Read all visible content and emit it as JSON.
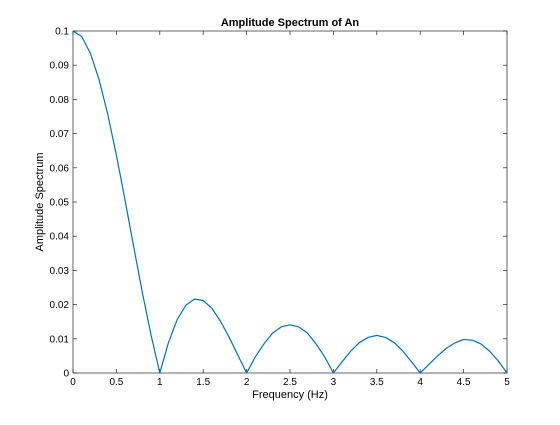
{
  "chart_data": {
    "type": "line",
    "title": "Amplitude Spectrum of An",
    "xlabel": "Frequency (Hz)",
    "ylabel": "Amplitude Spectrum",
    "xlim": [
      0,
      5
    ],
    "ylim": [
      0,
      0.1
    ],
    "xticks": [
      "0",
      "0.5",
      "1",
      "1.5",
      "2",
      "2.5",
      "3",
      "3.5",
      "4",
      "4.5",
      "5"
    ],
    "yticks": [
      "0",
      "0.01",
      "0.02",
      "0.03",
      "0.04",
      "0.05",
      "0.06",
      "0.07",
      "0.08",
      "0.09",
      "0.1"
    ],
    "grid": false,
    "series": [
      {
        "color": "#0072BD",
        "x": [
          0,
          0.1,
          0.2,
          0.3,
          0.4,
          0.5,
          0.6,
          0.7,
          0.8,
          0.9,
          1.0,
          1.1,
          1.2,
          1.3,
          1.4,
          1.5,
          1.6,
          1.7,
          1.8,
          1.9,
          2.0,
          2.1,
          2.2,
          2.3,
          2.4,
          2.5,
          2.6,
          2.7,
          2.8,
          2.9,
          3.0,
          3.1,
          3.2,
          3.3,
          3.4,
          3.5,
          3.6,
          3.7,
          3.8,
          3.9,
          4.0,
          4.1,
          4.2,
          4.3,
          4.4,
          4.5,
          4.6,
          4.7,
          4.8,
          4.9,
          5.0
        ],
        "y": [
          0.1,
          0.0984,
          0.0935,
          0.0858,
          0.0757,
          0.0637,
          0.0505,
          0.0368,
          0.0234,
          0.011,
          0.0,
          0.0089,
          0.0156,
          0.0198,
          0.0216,
          0.0212,
          0.0189,
          0.0151,
          0.0104,
          0.0052,
          0.0,
          0.0047,
          0.0085,
          0.0117,
          0.0135,
          0.0141,
          0.0135,
          0.0117,
          0.0085,
          0.0047,
          0.0,
          0.0033,
          0.0064,
          0.0089,
          0.0104,
          0.011,
          0.0104,
          0.0089,
          0.0064,
          0.0033,
          0.0,
          0.0025,
          0.005,
          0.0072,
          0.0088,
          0.0098,
          0.0096,
          0.0085,
          0.0064,
          0.0035,
          0.0
        ]
      }
    ]
  }
}
